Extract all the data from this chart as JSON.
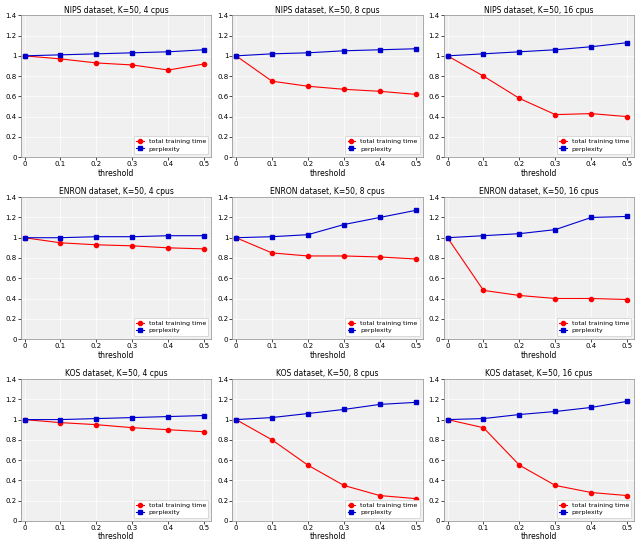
{
  "threshold": [
    0,
    0.1,
    0.2,
    0.3,
    0.4,
    0.5
  ],
  "titles": [
    "NIPS dataset, K=50, 4 cpus",
    "NIPS dataset, K=50, 8 cpus",
    "NIPS dataset, K=50, 16 cpus",
    "ENRON dataset, K=50, 4 cpus",
    "ENRON dataset, K=50, 8 cpus",
    "ENRON dataset, K=50, 16 cpus",
    "KOS dataset, K=50, 4 cpus",
    "KOS dataset, K=50, 8 cpus",
    "KOS dataset, K=50, 16 cpus"
  ],
  "time_data": [
    [
      1.0,
      0.97,
      0.93,
      0.91,
      0.86,
      0.92
    ],
    [
      1.0,
      0.75,
      0.7,
      0.67,
      0.65,
      0.62
    ],
    [
      1.0,
      0.8,
      0.58,
      0.42,
      0.43,
      0.4
    ],
    [
      1.0,
      0.95,
      0.93,
      0.92,
      0.9,
      0.89
    ],
    [
      1.0,
      0.85,
      0.82,
      0.82,
      0.81,
      0.79
    ],
    [
      1.0,
      0.48,
      0.43,
      0.4,
      0.4,
      0.39
    ],
    [
      1.0,
      0.97,
      0.95,
      0.92,
      0.9,
      0.88
    ],
    [
      1.0,
      0.8,
      0.55,
      0.35,
      0.25,
      0.22
    ],
    [
      1.0,
      0.92,
      0.55,
      0.35,
      0.28,
      0.25
    ]
  ],
  "perplexity_data": [
    [
      1.0,
      1.01,
      1.02,
      1.03,
      1.04,
      1.06
    ],
    [
      1.0,
      1.02,
      1.03,
      1.05,
      1.06,
      1.07
    ],
    [
      1.0,
      1.02,
      1.04,
      1.06,
      1.09,
      1.13
    ],
    [
      1.0,
      1.0,
      1.01,
      1.01,
      1.02,
      1.02
    ],
    [
      1.0,
      1.01,
      1.03,
      1.13,
      1.2,
      1.27
    ],
    [
      1.0,
      1.02,
      1.04,
      1.08,
      1.2,
      1.21
    ],
    [
      1.0,
      1.0,
      1.01,
      1.02,
      1.03,
      1.04
    ],
    [
      1.0,
      1.02,
      1.06,
      1.1,
      1.15,
      1.17
    ],
    [
      1.0,
      1.01,
      1.05,
      1.08,
      1.12,
      1.18
    ]
  ],
  "red_color": "#FF0000",
  "blue_color": "#0000CD",
  "xlabel": "threshold",
  "ylim": [
    0,
    1.4
  ],
  "yticks": [
    0,
    0.2,
    0.4,
    0.6,
    0.8,
    1.0,
    1.2,
    1.4
  ],
  "xticks": [
    0,
    0.1,
    0.2,
    0.3,
    0.4,
    0.5
  ],
  "legend_labels": [
    "total training time",
    "perplexity"
  ],
  "title_fontsize": 5.5,
  "legend_fontsize": 4.5,
  "tick_fontsize": 5,
  "label_fontsize": 5.5,
  "bg_color": "#f0f0f0"
}
